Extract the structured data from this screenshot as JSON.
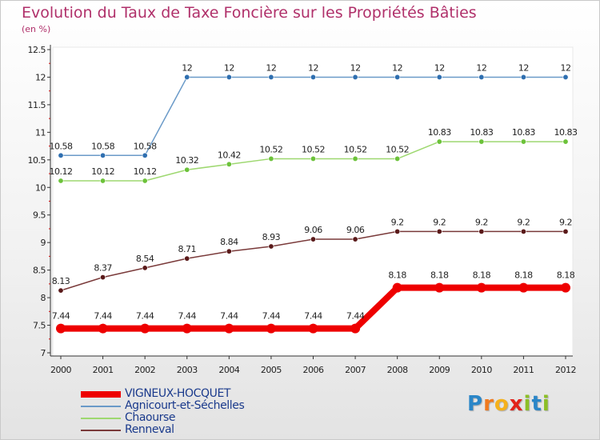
{
  "title": "Evolution du Taux de Taxe Foncière sur les Propriétés Bâties",
  "unit_label": "(en %)",
  "logo": {
    "letters": [
      "P",
      "r",
      "o",
      "x",
      "i",
      "t",
      "i"
    ],
    "colors": [
      "#2a86c8",
      "#f07a1e",
      "#f5b11b",
      "#e2231a",
      "#8cbf26",
      "#2a86c8",
      "#8cbf26"
    ]
  },
  "chart_data": {
    "type": "line",
    "title": "Evolution du Taux de Taxe Foncière sur les Propriétés Bâties",
    "ylabel": "(en %)",
    "xlabel": "",
    "x": [
      "2000",
      "2001",
      "2002",
      "2003",
      "2004",
      "2005",
      "2006",
      "2007",
      "2008",
      "2009",
      "2010",
      "2011",
      "2012"
    ],
    "ylim": [
      7,
      12.5
    ],
    "yticks": [
      "7",
      "7.5",
      "8",
      "8.5",
      "9",
      "9.5",
      "10",
      "10.5",
      "11",
      "11.5",
      "12",
      "12.5"
    ],
    "legend_position": "bottom-left",
    "series": [
      {
        "name": "VIGNEUX-HOCQUET",
        "color": "#ee0000",
        "highlight": true,
        "values": [
          7.44,
          7.44,
          7.44,
          7.44,
          7.44,
          7.44,
          7.44,
          7.44,
          8.18,
          8.18,
          8.18,
          8.18,
          8.18
        ],
        "labels": [
          "7.44",
          "7.44",
          "7.44",
          "7.44",
          "7.44",
          "7.44",
          "7.44",
          "7.44",
          "8.18",
          "8.18",
          "8.18",
          "8.18",
          "8.18"
        ]
      },
      {
        "name": "Agnicourt-et-Séchelles",
        "color": "#6a9ac8",
        "marker": "#2f6fb0",
        "values": [
          10.58,
          10.58,
          10.58,
          12,
          12,
          12,
          12,
          12,
          12,
          12,
          12,
          12,
          12
        ],
        "labels": [
          "10.58",
          "10.58",
          "10.58",
          "12",
          "12",
          "12",
          "12",
          "12",
          "12",
          "12",
          "12",
          "12",
          "12"
        ]
      },
      {
        "name": "Chaourse",
        "color": "#9ed870",
        "marker": "#6cc23a",
        "values": [
          10.12,
          10.12,
          10.12,
          10.32,
          10.42,
          10.52,
          10.52,
          10.52,
          10.52,
          10.83,
          10.83,
          10.83,
          10.83
        ],
        "labels": [
          "10.12",
          "10.12",
          "10.12",
          "10.32",
          "10.42",
          "10.52",
          "10.52",
          "10.52",
          "10.52",
          "10.83",
          "10.83",
          "10.83",
          "10.83"
        ]
      },
      {
        "name": "Renneval",
        "color": "#7a3a3a",
        "marker": "#5a1a1a",
        "values": [
          8.13,
          8.37,
          8.54,
          8.71,
          8.84,
          8.93,
          9.06,
          9.06,
          9.2,
          9.2,
          9.2,
          9.2,
          9.2
        ],
        "labels": [
          "8.13",
          "8.37",
          "8.54",
          "8.71",
          "8.84",
          "8.93",
          "9.06",
          "9.06",
          "9.2",
          "9.2",
          "9.2",
          "9.2",
          "9.2"
        ]
      }
    ]
  }
}
